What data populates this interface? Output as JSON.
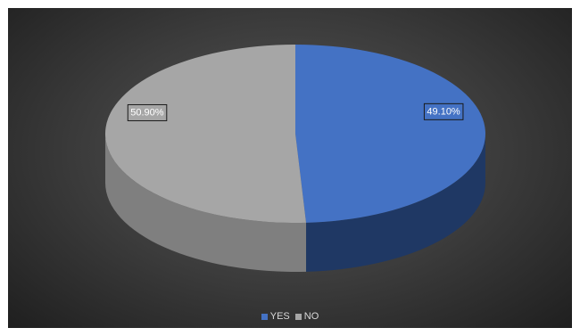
{
  "chart_data": {
    "type": "pie",
    "style": "3d",
    "title": "",
    "categories": [
      "YES",
      "NO"
    ],
    "values": [
      49.1,
      50.9
    ],
    "data_labels": [
      "49.10%",
      "50.90%"
    ],
    "colors": [
      "#4472C4",
      "#A6A6A6"
    ],
    "side_colors": [
      "#1F3864",
      "#7F7F7F"
    ],
    "legend_placement": "bottom"
  }
}
